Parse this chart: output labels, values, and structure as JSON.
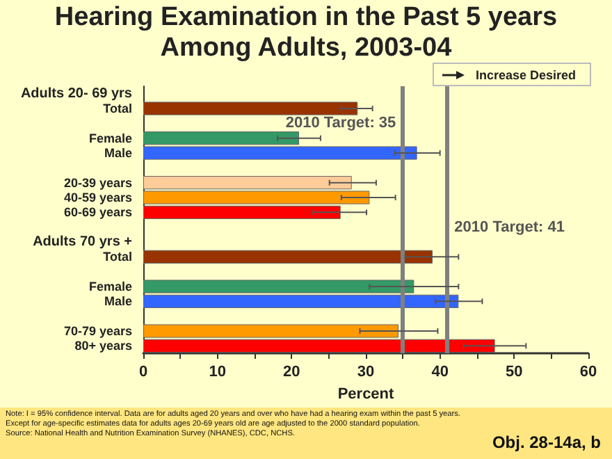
{
  "chart_data": {
    "type": "bar",
    "orientation": "horizontal",
    "title": "Hearing Examination in the Past 5 years Among Adults, 2003-04",
    "xlabel": "Percent",
    "categories": [
      "Adults 20- 69 yrs",
      "Total",
      null,
      "Female",
      "Male",
      null,
      "20-39 years",
      "40-59 years",
      "60-69 years",
      null,
      "Adults 70 yrs +",
      "Total",
      null,
      "Female",
      "Male",
      null,
      "70-79 years",
      "80+ years"
    ],
    "values": [
      null,
      28.9,
      null,
      21.0,
      36.9,
      null,
      28.1,
      30.5,
      26.6,
      null,
      null,
      39.0,
      null,
      36.5,
      42.5,
      null,
      34.4,
      47.4
    ],
    "colors": [
      null,
      "#993300",
      null,
      "#339966",
      "#3366ff",
      null,
      "#ffcc99",
      "#ff9900",
      "#ff0000",
      null,
      null,
      "#993300",
      null,
      "#339966",
      "#3366ff",
      null,
      "#ff9900",
      "#ff0000"
    ],
    "errors": [
      null,
      [
        26.7,
        30.9
      ],
      null,
      [
        18.1,
        23.9
      ],
      [
        33.9,
        40.0
      ],
      null,
      [
        25.1,
        31.4
      ],
      [
        26.7,
        34.0
      ],
      [
        22.9,
        30.1
      ],
      null,
      null,
      [
        35.3,
        42.5
      ],
      null,
      [
        30.5,
        42.5
      ],
      [
        39.4,
        45.7
      ],
      null,
      [
        29.2,
        39.7
      ],
      [
        43.2,
        51.6
      ]
    ],
    "xlim": [
      0,
      60
    ],
    "xticks": [
      0,
      {
        "value": 5,
        "label": null
      },
      10,
      {
        "value": 15,
        "label": null
      },
      20,
      {
        "value": 25,
        "label": null
      },
      30,
      {
        "value": 35,
        "label": null
      },
      40,
      {
        "value": 45,
        "label": null
      },
      50,
      {
        "value": 55,
        "label": null
      },
      60
    ],
    "ref_lines": [
      {
        "axis": "x",
        "value": 35,
        "label": "2010 Target: 35",
        "color": "#808080"
      },
      {
        "axis": "x",
        "value": 41,
        "label": "2010 Target: 41",
        "color": "#808080"
      }
    ],
    "grid": false,
    "annotations": [
      "Increase Desired",
      "Note: I = 95% confidence interval. Data are for adults aged 20 years and over who have had a hearing exam within the past 5 years. Except for age-specific estimates data for adults ages 20-69 years old are age adjusted to the 2000 standard population.",
      "Source: National Health and Nutrition Examination Survey (NHANES), CDC, NCHS.",
      "Obj. 28-14a, b"
    ]
  }
}
